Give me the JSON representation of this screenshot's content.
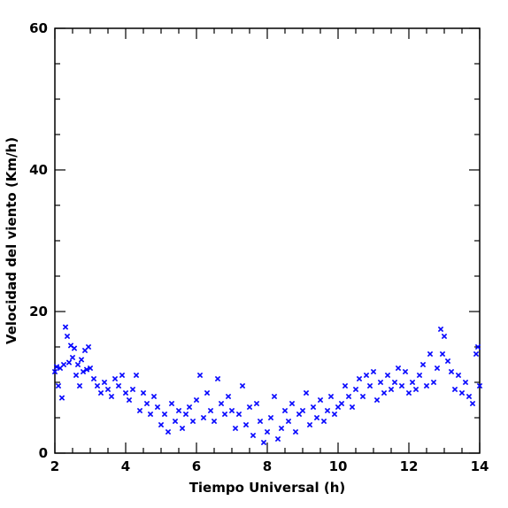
{
  "chart_data": {
    "type": "scatter",
    "xlabel": "Tiempo Universal (h)",
    "ylabel": "Velocidad del viento (Km/h)",
    "xlim": [
      2,
      14
    ],
    "ylim": [
      0,
      60
    ],
    "xticks": [
      2,
      4,
      6,
      8,
      10,
      12,
      14
    ],
    "yticks": [
      0,
      20,
      40,
      60
    ],
    "xminorticks": [
      2.5,
      3,
      3.5,
      4.5,
      5,
      5.5,
      6.5,
      7,
      7.5,
      8.5,
      9,
      9.5,
      10.5,
      11,
      11.5,
      12.5,
      13,
      13.5
    ],
    "yminorticks": [
      5,
      10,
      15,
      25,
      30,
      35,
      45,
      50,
      55
    ],
    "series": [
      {
        "color": "#0000ff",
        "x": [
          2.0,
          2.05,
          2.1,
          2.15,
          2.2,
          2.25,
          2.3,
          2.35,
          2.4,
          2.45,
          2.5,
          2.55,
          2.6,
          2.65,
          2.7,
          2.75,
          2.8,
          2.85,
          2.9,
          2.95,
          3.0,
          3.1,
          3.2,
          3.3,
          3.4,
          3.5,
          3.6,
          3.7,
          3.8,
          3.9,
          4.0,
          4.1,
          4.2,
          4.3,
          4.4,
          4.5,
          4.6,
          4.7,
          4.8,
          4.9,
          5.0,
          5.1,
          5.2,
          5.3,
          5.4,
          5.5,
          5.6,
          5.7,
          5.8,
          5.9,
          6.0,
          6.1,
          6.2,
          6.3,
          6.4,
          6.5,
          6.6,
          6.7,
          6.8,
          6.9,
          7.0,
          7.1,
          7.2,
          7.3,
          7.4,
          7.5,
          7.6,
          7.7,
          7.8,
          7.9,
          8.0,
          8.1,
          8.2,
          8.3,
          8.4,
          8.5,
          8.6,
          8.7,
          8.8,
          8.9,
          9.0,
          9.1,
          9.2,
          9.3,
          9.4,
          9.5,
          9.6,
          9.7,
          9.8,
          9.9,
          10.0,
          10.1,
          10.2,
          10.3,
          10.4,
          10.5,
          10.6,
          10.7,
          10.8,
          10.9,
          11.0,
          11.1,
          11.2,
          11.3,
          11.4,
          11.5,
          11.6,
          11.7,
          11.8,
          11.9,
          12.0,
          12.1,
          12.2,
          12.3,
          12.4,
          12.5,
          12.6,
          12.7,
          12.8,
          12.9,
          12.95,
          13.0,
          13.1,
          13.2,
          13.3,
          13.4,
          13.5,
          13.6,
          13.7,
          13.8,
          13.9,
          13.95,
          14.0
        ],
        "values": [
          11.5,
          12.2,
          9.5,
          12,
          7.8,
          12.5,
          17.8,
          16.5,
          12.8,
          15.2,
          13.5,
          14.8,
          11,
          12.5,
          9.5,
          13.2,
          11.5,
          14.5,
          11.8,
          15,
          12,
          10.5,
          9.5,
          8.5,
          10,
          9,
          8,
          10.5,
          9.5,
          11,
          8.5,
          7.5,
          9,
          11,
          6,
          8.5,
          7,
          5.5,
          8,
          6.5,
          4,
          5.5,
          3,
          7,
          4.5,
          6,
          3.5,
          5.5,
          6.5,
          4.5,
          7.5,
          11,
          5,
          8.5,
          6,
          4.5,
          10.5,
          7,
          5.5,
          8,
          6,
          3.5,
          5.5,
          9.5,
          4,
          6.5,
          2.5,
          7,
          4.5,
          1.5,
          3,
          5,
          8,
          2,
          3.5,
          6,
          4.5,
          7,
          3,
          5.5,
          6,
          8.5,
          4,
          6.5,
          5,
          7.5,
          4.5,
          6,
          8,
          5.5,
          6.5,
          7,
          9.5,
          8,
          6.5,
          9,
          10.5,
          8,
          11,
          9.5,
          11.5,
          7.5,
          10,
          8.5,
          11,
          9,
          10,
          12,
          9.5,
          11.5,
          8.5,
          10,
          9,
          11,
          12.5,
          9.5,
          14,
          10,
          12,
          17.5,
          14,
          16.5,
          13,
          11.5,
          9,
          11,
          8.5,
          10,
          8,
          7,
          14,
          15,
          9.5
        ]
      }
    ]
  }
}
